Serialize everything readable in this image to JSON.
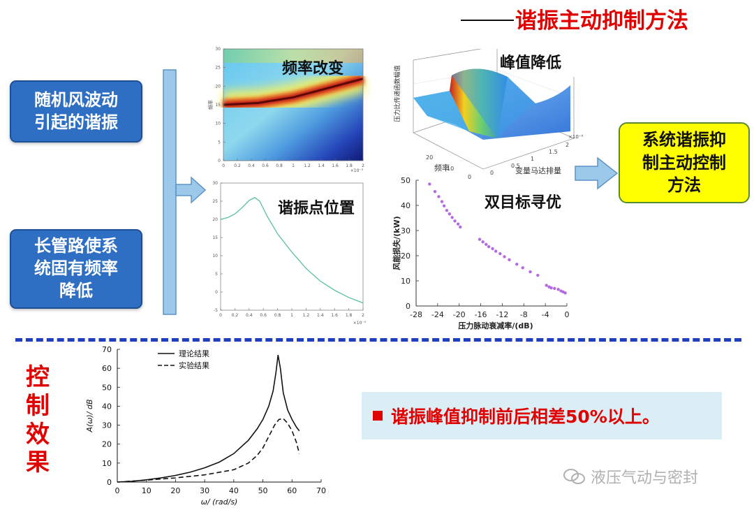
{
  "title": "谐振主动抑制方法",
  "cause_boxes": [
    {
      "lines": [
        "随机风波动",
        "引起的谐振"
      ]
    },
    {
      "lines": [
        "长管路使系",
        "统固有频率",
        "降低"
      ]
    }
  ],
  "annotations": {
    "freq_change": "频率改变",
    "resonance_point": "谐振点位置",
    "peak_reduce": "峰值降低",
    "bi_objective": "双目标寻优"
  },
  "target_box": {
    "lines": [
      "系统谐振抑",
      "制主动控制",
      "方法"
    ]
  },
  "effect_label": [
    "控",
    "制",
    "效",
    "果"
  ],
  "result_text": "谐振峰值抑制前后相差50%以上。",
  "watermark": "液压气动与密封",
  "colors": {
    "title": "#e00000",
    "box_blue": "#2e6fc4",
    "box_yellow": "#ffff00",
    "arrow_blue": "#9cc8ea",
    "dash": "#1f3fbf"
  },
  "chart_data": [
    {
      "type": "heatmap",
      "ylabel": "频率",
      "x_ticks": [
        "0",
        "0.2",
        "0.4",
        "0.6",
        "0.8",
        "1",
        "1.2",
        "1.4",
        "1.6",
        "1.8",
        "2"
      ],
      "y_ticks": [
        "0",
        "5",
        "10",
        "15",
        "20",
        "25",
        "30"
      ],
      "xlim": [
        0,
        2
      ],
      "ylim": [
        0,
        30
      ],
      "ridge": {
        "x": [
          0,
          0.5,
          1.0,
          1.5,
          2.0
        ],
        "y": [
          15,
          15.5,
          17,
          19.5,
          22
        ]
      },
      "x_exponent": "×10⁻³"
    },
    {
      "type": "line",
      "x_ticks": [
        "0",
        "0.2",
        "0.4",
        "0.6",
        "0.8",
        "1",
        "1.2",
        "1.4",
        "1.6",
        "1.8",
        "2"
      ],
      "y_ticks": [
        "-5",
        "0",
        "5",
        "10",
        "15",
        "20",
        "25",
        "30"
      ],
      "xlim": [
        0,
        2
      ],
      "ylim": [
        -5,
        30
      ],
      "x": [
        0,
        0.1,
        0.2,
        0.3,
        0.4,
        0.48,
        0.55,
        0.65,
        0.8,
        1.0,
        1.2,
        1.4,
        1.6,
        1.8,
        2.0
      ],
      "y": [
        20,
        20.5,
        21.5,
        23.2,
        25.2,
        26,
        25,
        21,
        16,
        11,
        6.5,
        3,
        0.5,
        -1.5,
        -3
      ],
      "x_exponent": "×10⁻³"
    },
    {
      "type": "surface",
      "xlabel": "频率",
      "ylabel": "变量马达排量",
      "zlabel": "压力比传递函数幅值",
      "x_ticks": [
        "0",
        "10",
        "20"
      ],
      "y_ticks": [
        "0",
        "0.5",
        "1",
        "1.5",
        "2"
      ],
      "y_exponent": "×10⁻³"
    },
    {
      "type": "scatter",
      "xlabel": "压力脉动衰减率/(dB)",
      "ylabel": "风能损失/(kW)",
      "xlim": [
        -28,
        0
      ],
      "ylim": [
        0,
        50
      ],
      "x_ticks": [
        "-28",
        "-24",
        "-20",
        "-16",
        "-12",
        "-8",
        "-4",
        "0"
      ],
      "y_ticks": [
        "0",
        "10",
        "20",
        "30",
        "40",
        "50"
      ],
      "x": [
        -25.5,
        -24.5,
        -23.8,
        -23.2,
        -22.8,
        -22.3,
        -21.8,
        -21.3,
        -20.8,
        -20.2,
        -19.8,
        -16.2,
        -15.6,
        -15.0,
        -14.5,
        -13.8,
        -13.2,
        -12.4,
        -11.6,
        -10.7,
        -9.3,
        -8.2,
        -6.8,
        -5.4,
        -3.8,
        -3.3,
        -2.9,
        -2.3,
        -1.6,
        -1.1,
        -0.7,
        -0.3
      ],
      "y": [
        48.5,
        45.5,
        43.5,
        41.5,
        39.8,
        38,
        36.6,
        35.2,
        33.8,
        32.6,
        31.4,
        26.5,
        25.5,
        24.5,
        23.6,
        22.8,
        21.8,
        20.8,
        19.6,
        18.4,
        16.6,
        15.2,
        13.6,
        12.2,
        8.2,
        7.6,
        7.2,
        7.0,
        6.6,
        6.0,
        5.6,
        5.2
      ]
    },
    {
      "type": "line",
      "xlabel": "ω/ (rad/s)",
      "ylabel": "A(ω)/ dB",
      "xlim": [
        0,
        70
      ],
      "ylim": [
        0,
        70
      ],
      "x_ticks": [
        "0",
        "10",
        "20",
        "30",
        "40",
        "50",
        "60",
        "70"
      ],
      "y_ticks": [
        "0",
        "10",
        "20",
        "30",
        "40",
        "50",
        "60",
        "70"
      ],
      "series": [
        {
          "name": "理论结果",
          "style": "solid",
          "x": [
            0,
            5,
            10,
            15,
            20,
            25,
            30,
            35,
            40,
            45,
            48,
            50,
            52,
            53.5,
            54.5,
            55.2,
            56,
            57,
            58.5,
            60,
            61.5,
            62.5
          ],
          "y": [
            0,
            0.4,
            1.2,
            2.2,
            3.5,
            5.2,
            7.5,
            10.5,
            15,
            22,
            28,
            33,
            40,
            48,
            58,
            67,
            60,
            47,
            38,
            33,
            29,
            27
          ]
        },
        {
          "name": "实验结果",
          "style": "dashed",
          "x": [
            0,
            10,
            20,
            30,
            40,
            45,
            48,
            50,
            52,
            54,
            55.5,
            57,
            58.5,
            60,
            61.5,
            62.5
          ],
          "y": [
            0,
            1,
            2.2,
            3.8,
            6.5,
            10,
            14,
            18,
            24,
            30,
            33,
            33.5,
            31,
            27,
            21,
            15
          ]
        }
      ]
    }
  ]
}
